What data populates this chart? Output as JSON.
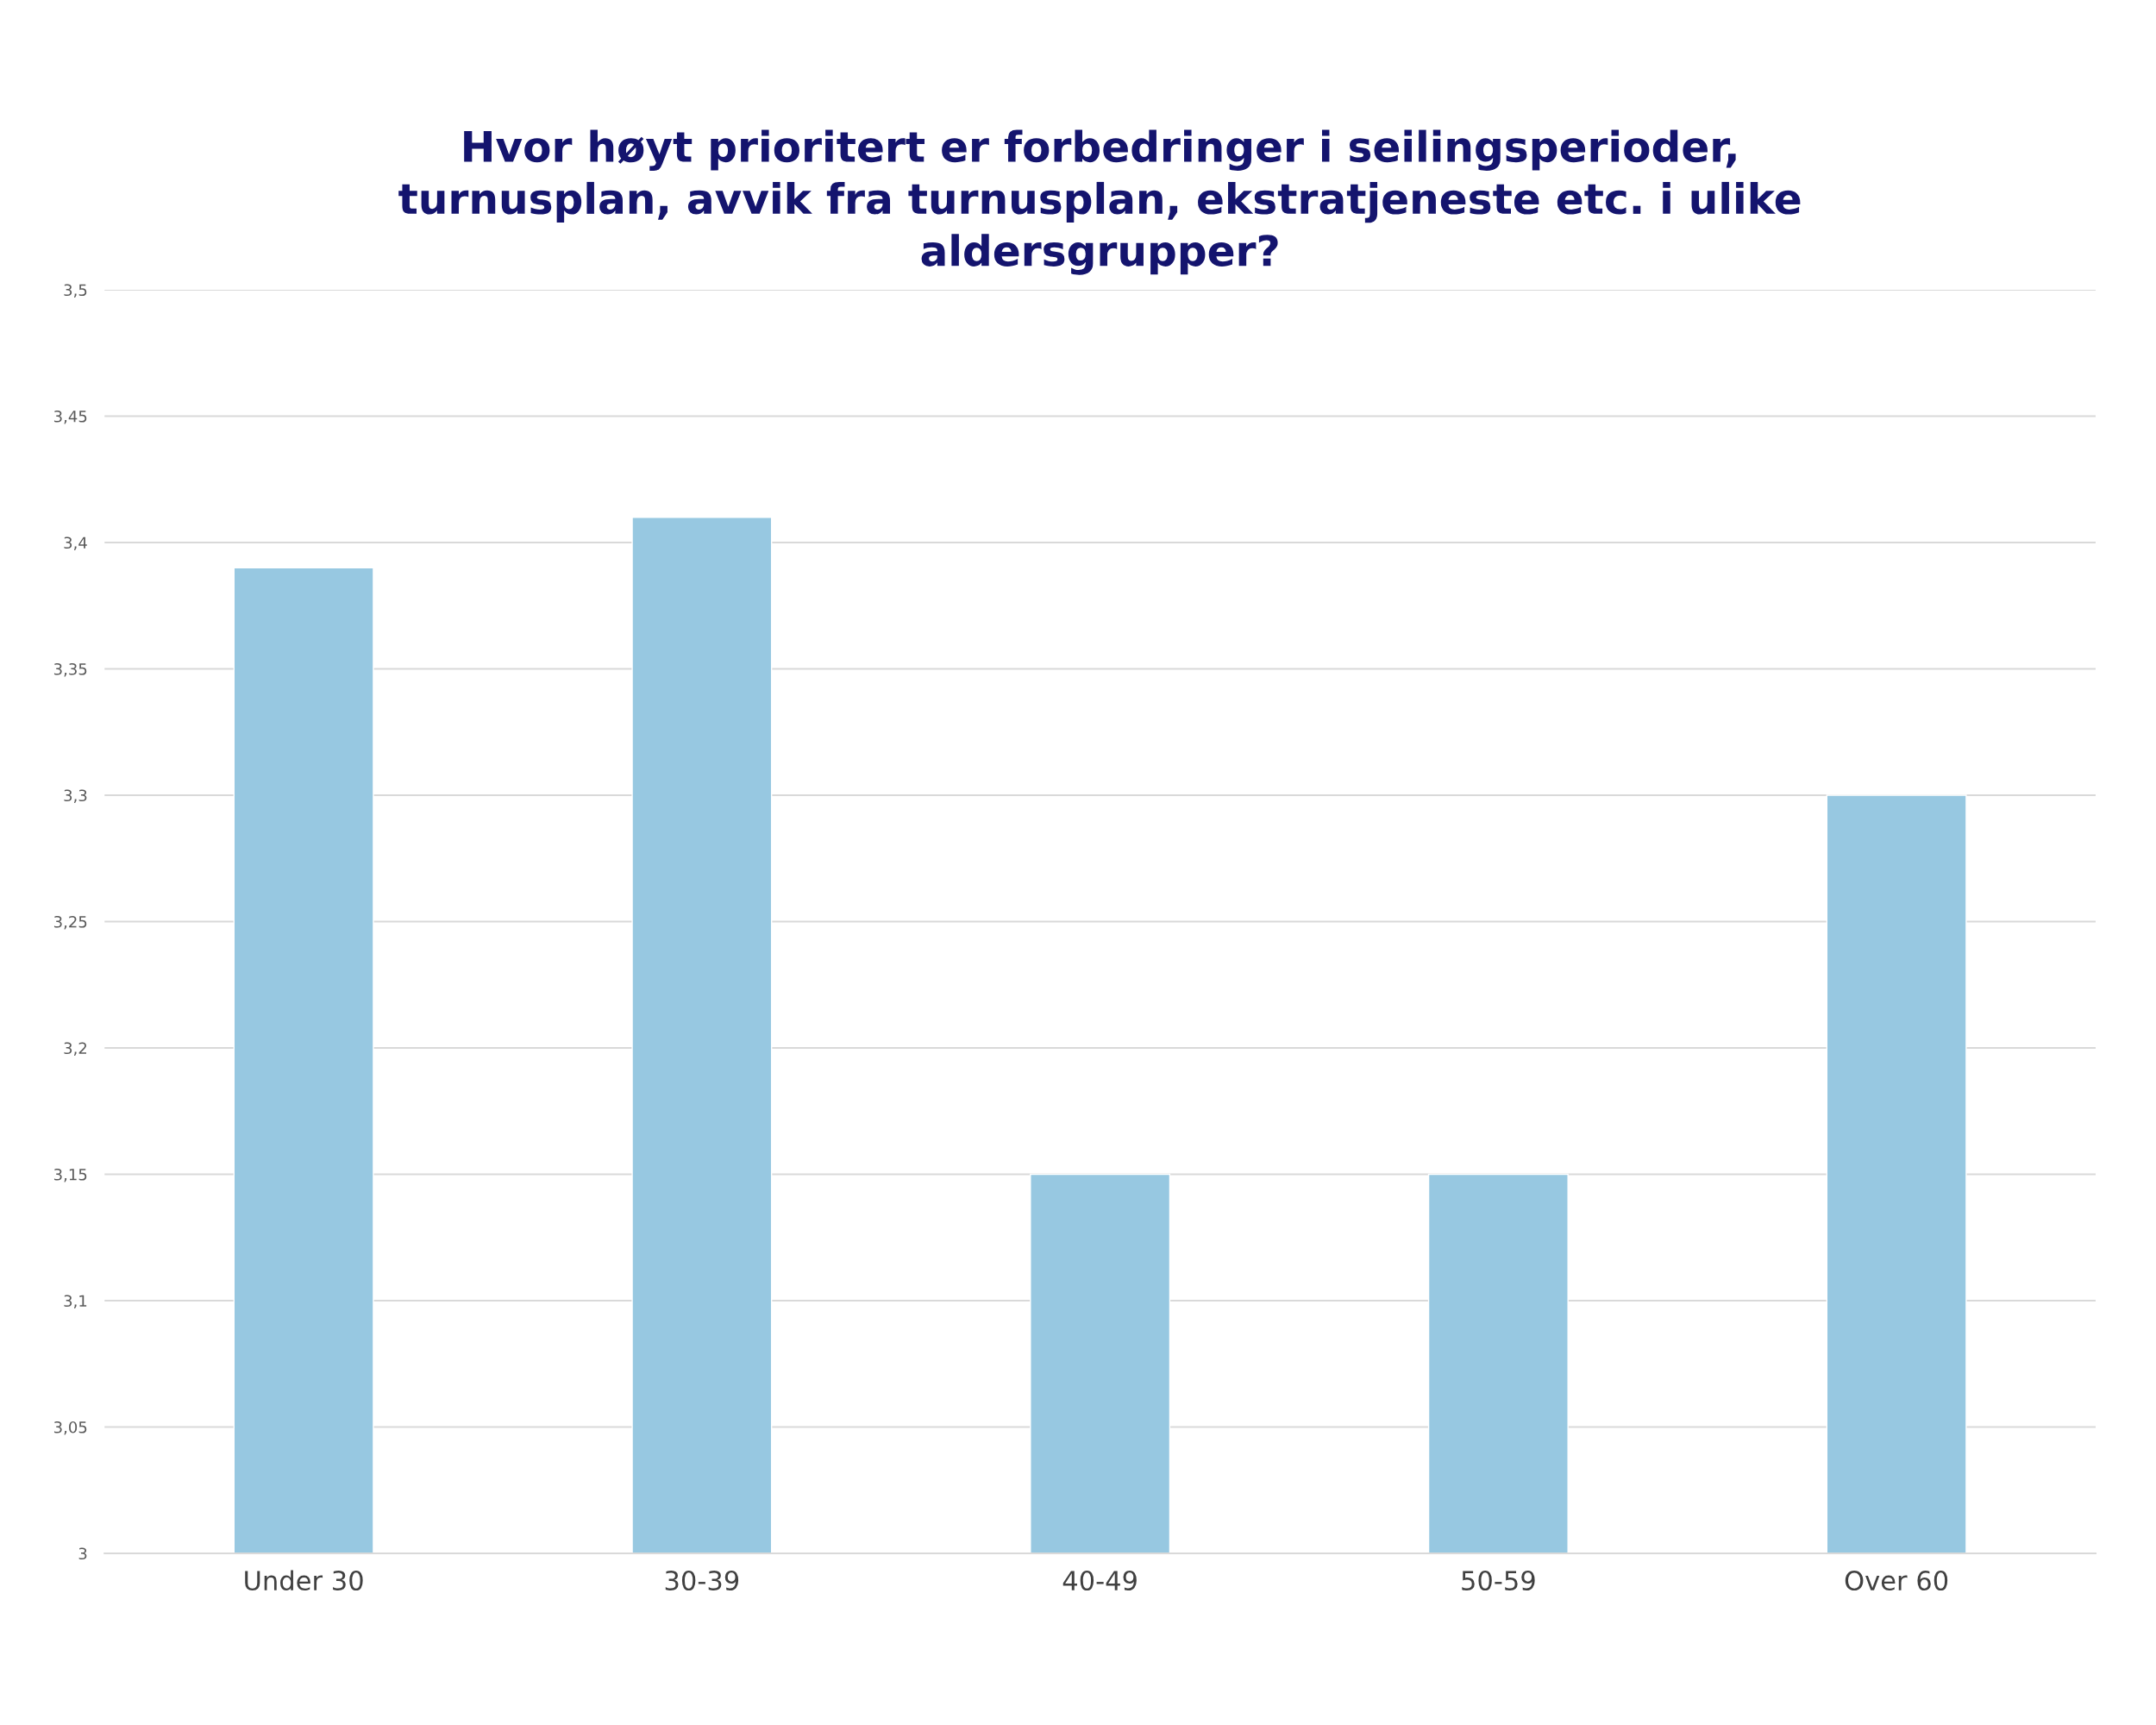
{
  "chart_data": {
    "type": "bar",
    "title": "Hvor høyt prioritert er forbedringer i seilingsperioder,\nturnusplan, avvik fra turnusplan, ekstratjeneste etc. i ulike\naldersgrupper?",
    "categories": [
      "Under 30",
      "30-39",
      "40-49",
      "50-59",
      "Over 60"
    ],
    "values": [
      3.39,
      3.41,
      3.15,
      3.15,
      3.3
    ],
    "color": "#97c8e1",
    "ylim": [
      3,
      3.5
    ],
    "yticks": [
      3,
      {
        "value": 3.05,
        "label": "3,05"
      },
      {
        "value": 3.1,
        "label": "3,1"
      },
      {
        "value": 3.15,
        "label": "3,15"
      },
      {
        "value": 3.2,
        "label": "3,2"
      },
      {
        "value": 3.25,
        "label": "3,25"
      },
      {
        "value": 3.3,
        "label": "3,3"
      },
      {
        "value": 3.35,
        "label": "3,35"
      },
      {
        "value": 3.4,
        "label": "3,4"
      },
      {
        "value": 3.45,
        "label": "3,45"
      },
      {
        "value": 3.5,
        "label": "3,5"
      }
    ],
    "grid": "y"
  }
}
